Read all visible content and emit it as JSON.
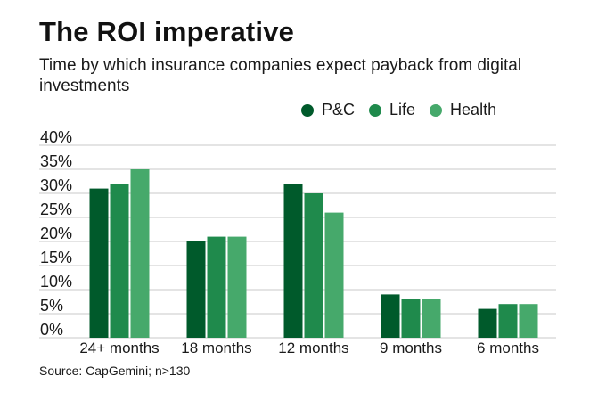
{
  "title": "The ROI imperative",
  "subtitle": "Time by which insurance companies expect payback from digital investments",
  "source": "Source: CapGemini; n>130",
  "colors": {
    "pc": "#005a2b",
    "life": "#1f8a4c",
    "health": "#46a96b",
    "grid": "#c8c8c8"
  },
  "chart_data": {
    "type": "bar",
    "categories": [
      "24+ months",
      "18 months",
      "12 months",
      "9 months",
      "6 months"
    ],
    "series": [
      {
        "name": "P&C",
        "values": [
          31,
          20,
          32,
          9,
          6
        ]
      },
      {
        "name": "Life",
        "values": [
          32,
          21,
          30,
          8,
          7
        ]
      },
      {
        "name": "Health",
        "values": [
          35,
          21,
          26,
          8,
          7
        ]
      }
    ],
    "y_ticks": [
      "0%",
      "5%",
      "10%",
      "15%",
      "20%",
      "25%",
      "30%",
      "35%",
      "40%"
    ],
    "ylim": [
      0,
      40
    ],
    "legend_position": "top-right",
    "grid": true
  }
}
